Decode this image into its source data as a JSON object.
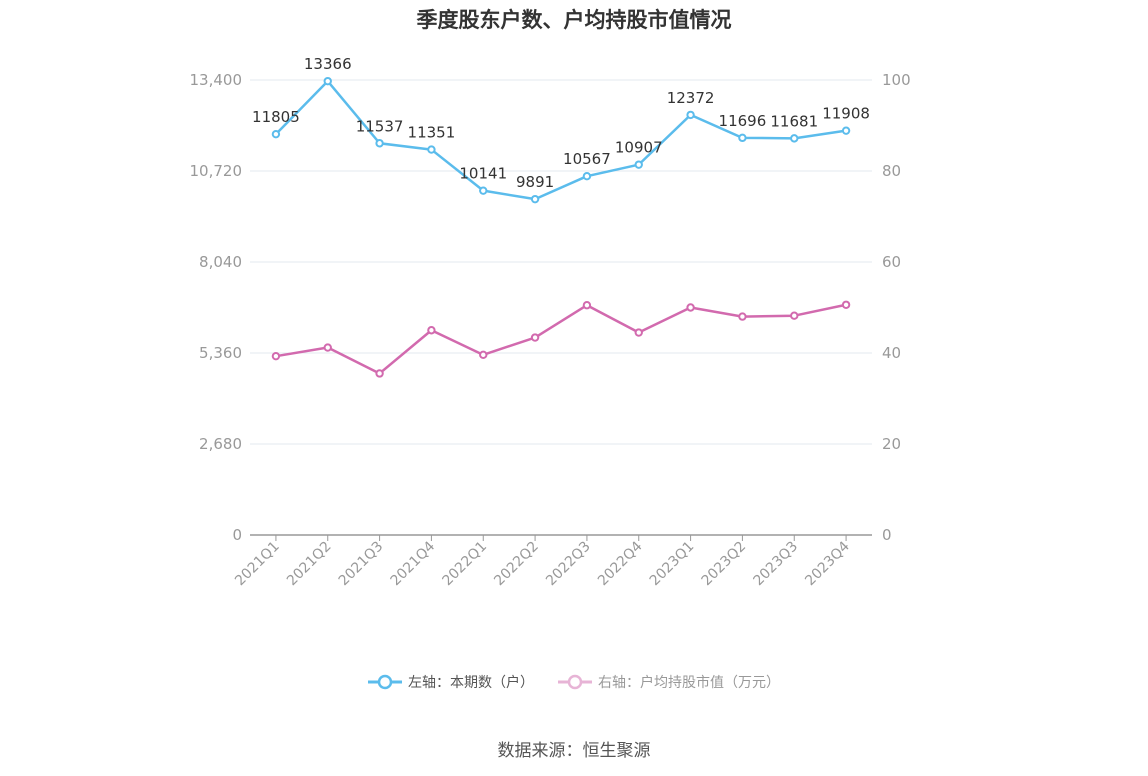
{
  "chart_data": {
    "type": "line",
    "title": "季度股东户数、户均持股市值情况",
    "categories": [
      "2021Q1",
      "2021Q2",
      "2021Q3",
      "2021Q4",
      "2022Q1",
      "2022Q2",
      "2022Q3",
      "2022Q4",
      "2023Q1",
      "2023Q2",
      "2023Q3",
      "2023Q4"
    ],
    "left_axis": {
      "min": 0,
      "max": 13400,
      "ticks": [
        0,
        2680,
        5360,
        8040,
        10720,
        13400
      ],
      "tick_labels": [
        "0",
        "2,680",
        "5,360",
        "8,040",
        "10,720",
        "13,400"
      ]
    },
    "right_axis": {
      "min": 0,
      "max": 100,
      "ticks": [
        0,
        20,
        40,
        60,
        80,
        100
      ],
      "tick_labels": [
        "0",
        "20",
        "40",
        "60",
        "80",
        "100"
      ]
    },
    "series": [
      {
        "name": "左轴：本期数（户）",
        "axis": "left",
        "color": "#5bbcec",
        "show_labels": true,
        "values": [
          11805,
          13366,
          11537,
          11351,
          10141,
          9891,
          10567,
          10907,
          12372,
          11696,
          11681,
          11908
        ]
      },
      {
        "name": "右轴：户均持股市值（万元）",
        "axis": "right",
        "color": "#d26aae",
        "show_labels": false,
        "values": [
          39.3,
          41.2,
          35.5,
          45.0,
          39.6,
          43.4,
          50.5,
          44.5,
          50.0,
          48.0,
          48.2,
          50.6
        ]
      }
    ],
    "grid": true,
    "legend_position": "bottom"
  },
  "source": "数据来源：恒生聚源"
}
